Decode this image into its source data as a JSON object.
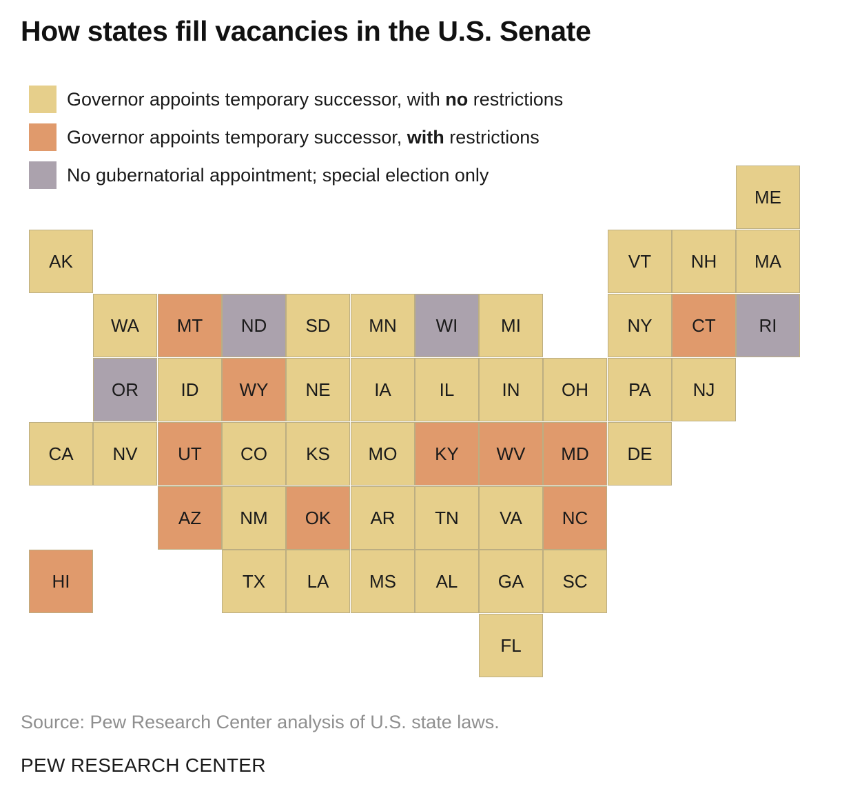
{
  "title": "How states fill vacancies in the U.S. Senate",
  "colors": {
    "no_restrictions": "#e6cf8b",
    "restrictions": "#e09a6c",
    "special_election": "#aba2ad"
  },
  "legend": [
    {
      "category": "no_restrictions",
      "text_before": "Governor appoints temporary successor, with ",
      "text_bold": "no",
      "text_after": " restrictions"
    },
    {
      "category": "restrictions",
      "text_before": "Governor appoints temporary successor, ",
      "text_bold": "with",
      "text_after": " restrictions"
    },
    {
      "category": "special_election",
      "text_before": "No gubernatorial appointment; special election only",
      "text_bold": "",
      "text_after": ""
    }
  ],
  "states": [
    {
      "code": "ME",
      "category": "no_restrictions"
    },
    {
      "code": "AK",
      "category": "no_restrictions"
    },
    {
      "code": "VT",
      "category": "no_restrictions"
    },
    {
      "code": "NH",
      "category": "no_restrictions"
    },
    {
      "code": "MA",
      "category": "no_restrictions"
    },
    {
      "code": "WA",
      "category": "no_restrictions"
    },
    {
      "code": "MT",
      "category": "restrictions"
    },
    {
      "code": "ND",
      "category": "special_election"
    },
    {
      "code": "SD",
      "category": "no_restrictions"
    },
    {
      "code": "MN",
      "category": "no_restrictions"
    },
    {
      "code": "WI",
      "category": "special_election"
    },
    {
      "code": "MI",
      "category": "no_restrictions"
    },
    {
      "code": "NY",
      "category": "no_restrictions"
    },
    {
      "code": "CT",
      "category": "restrictions"
    },
    {
      "code": "RI",
      "category": "special_election"
    },
    {
      "code": "OR",
      "category": "special_election"
    },
    {
      "code": "ID",
      "category": "no_restrictions"
    },
    {
      "code": "WY",
      "category": "restrictions"
    },
    {
      "code": "NE",
      "category": "no_restrictions"
    },
    {
      "code": "IA",
      "category": "no_restrictions"
    },
    {
      "code": "IL",
      "category": "no_restrictions"
    },
    {
      "code": "IN",
      "category": "no_restrictions"
    },
    {
      "code": "OH",
      "category": "no_restrictions"
    },
    {
      "code": "PA",
      "category": "no_restrictions"
    },
    {
      "code": "NJ",
      "category": "no_restrictions"
    },
    {
      "code": "CA",
      "category": "no_restrictions"
    },
    {
      "code": "NV",
      "category": "no_restrictions"
    },
    {
      "code": "UT",
      "category": "restrictions"
    },
    {
      "code": "CO",
      "category": "no_restrictions"
    },
    {
      "code": "KS",
      "category": "no_restrictions"
    },
    {
      "code": "MO",
      "category": "no_restrictions"
    },
    {
      "code": "KY",
      "category": "restrictions"
    },
    {
      "code": "WV",
      "category": "restrictions"
    },
    {
      "code": "MD",
      "category": "restrictions"
    },
    {
      "code": "DE",
      "category": "no_restrictions"
    },
    {
      "code": "AZ",
      "category": "restrictions"
    },
    {
      "code": "NM",
      "category": "no_restrictions"
    },
    {
      "code": "OK",
      "category": "restrictions"
    },
    {
      "code": "AR",
      "category": "no_restrictions"
    },
    {
      "code": "TN",
      "category": "no_restrictions"
    },
    {
      "code": "VA",
      "category": "no_restrictions"
    },
    {
      "code": "NC",
      "category": "restrictions"
    },
    {
      "code": "HI",
      "category": "restrictions"
    },
    {
      "code": "TX",
      "category": "no_restrictions"
    },
    {
      "code": "LA",
      "category": "no_restrictions"
    },
    {
      "code": "MS",
      "category": "no_restrictions"
    },
    {
      "code": "AL",
      "category": "no_restrictions"
    },
    {
      "code": "GA",
      "category": "no_restrictions"
    },
    {
      "code": "SC",
      "category": "no_restrictions"
    },
    {
      "code": "FL",
      "category": "no_restrictions"
    }
  ],
  "source": "Source: Pew Research Center analysis of U.S. state laws.",
  "brand": "PEW RESEARCH CENTER"
}
